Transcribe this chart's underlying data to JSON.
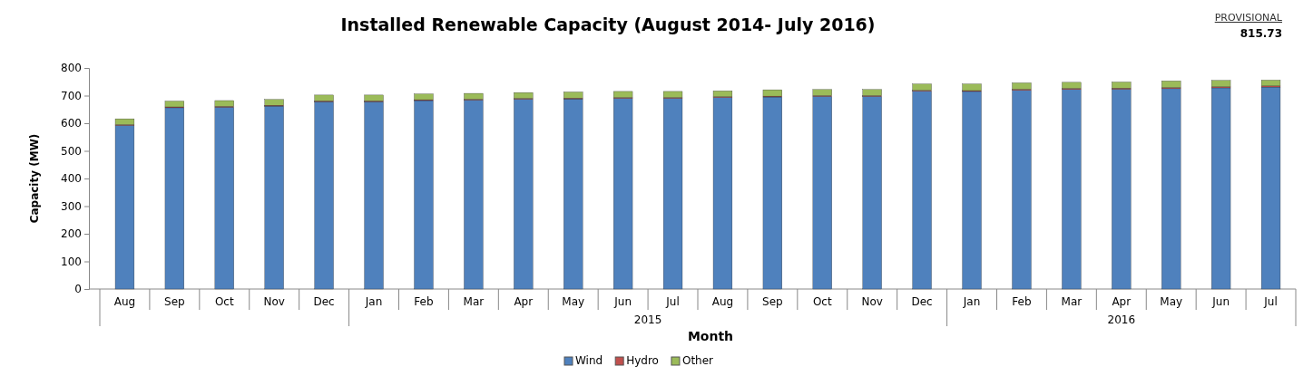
{
  "chart_data": {
    "type": "bar",
    "stacked": true,
    "title": "Installed Renewable Capacity (August 2014- July 2016)",
    "xlabel": "Month",
    "ylabel": "Capacity (MW)",
    "annotations": [
      "PROVISIONAL",
      "815.73",
      "2015",
      "2016"
    ],
    "categories": [
      "Aug",
      "Sep",
      "Oct",
      "Nov",
      "Dec",
      "Jan",
      "Feb",
      "Mar",
      "Apr",
      "May",
      "Jun",
      "Jul",
      "Aug",
      "Sep",
      "Oct",
      "Nov",
      "Dec",
      "Jan",
      "Feb",
      "Mar",
      "Apr",
      "May",
      "Jun",
      "Jul"
    ],
    "series": [
      {
        "name": "Wind",
        "color": "#4f81bd",
        "values": [
          592,
          656,
          658,
          662,
          678,
          678,
          682,
          684,
          687,
          688,
          690,
          690,
          693,
          695,
          697,
          697,
          716,
          715,
          719,
          722,
          723,
          725,
          728,
          731
        ]
      },
      {
        "name": "Hydro",
        "color": "#c0504d",
        "values": [
          3,
          3,
          3,
          3,
          3,
          3,
          3,
          3,
          3,
          3,
          3,
          3,
          3,
          3,
          3,
          3,
          3,
          3,
          4,
          4,
          4,
          4,
          4,
          4
        ]
      },
      {
        "name": "Other",
        "color": "#9bbb59",
        "values": [
          21,
          21,
          21,
          21,
          21,
          21,
          21,
          21,
          21,
          22,
          22,
          22,
          21,
          23,
          22,
          22,
          23,
          24,
          23,
          22,
          22,
          24,
          23,
          21
        ]
      }
    ],
    "ylim": [
      0,
      800
    ],
    "yticks": [
      0,
      100,
      200,
      300,
      400,
      500,
      600,
      700,
      800
    ],
    "legend": "bottom",
    "grid": false
  }
}
